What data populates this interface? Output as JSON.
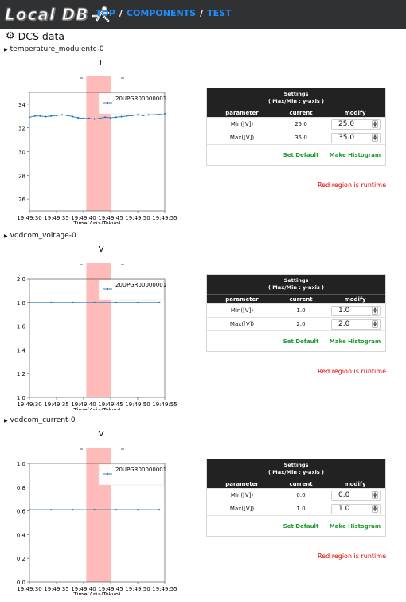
{
  "nav": {
    "logo_text": "Local DB",
    "links": [
      "TOP",
      "COMPONENTS",
      "TEST"
    ],
    "separator": "/"
  },
  "page_title": "DCS data",
  "sections": [
    {
      "name": "temperature_modulentc-0",
      "chart_title": "t",
      "settings_header_line1": "Settings",
      "settings_header_line2": "( Max/Min : y-axis )",
      "col_parameter": "parameter",
      "col_current": "current",
      "col_modify": "modify",
      "rows": [
        {
          "parameter": "Min([V])",
          "current": "25.0",
          "modify": "25.0"
        },
        {
          "parameter": "Max([V])",
          "current": "35.0",
          "modify": "35.0"
        }
      ],
      "set_default": "Set Default",
      "make_histogram": "Make Histogram",
      "runtime_note": "Red region is runtime"
    },
    {
      "name": "vddcom_voltage-0",
      "chart_title": "V",
      "settings_header_line1": "Settings",
      "settings_header_line2": "( Max/Min : y-axis )",
      "col_parameter": "parameter",
      "col_current": "current",
      "col_modify": "modify",
      "rows": [
        {
          "parameter": "Min([V])",
          "current": "1.0",
          "modify": "1.0"
        },
        {
          "parameter": "Max([V])",
          "current": "2.0",
          "modify": "2.0"
        }
      ],
      "set_default": "Set Default",
      "make_histogram": "Make Histogram",
      "runtime_note": "Red region is runtime"
    },
    {
      "name": "vddcom_current-0",
      "chart_title": "V",
      "settings_header_line1": "Settings",
      "settings_header_line2": "( Max/Min : y-axis )",
      "col_parameter": "parameter",
      "col_current": "current",
      "col_modify": "modify",
      "rows": [
        {
          "parameter": "Min([V])",
          "current": "0.0",
          "modify": "0.0"
        },
        {
          "parameter": "Max([V])",
          "current": "1.0",
          "modify": "1.0"
        }
      ],
      "set_default": "Set Default",
      "make_histogram": "Make Histogram",
      "runtime_note": "Red region is runtime"
    }
  ],
  "chart_data": [
    {
      "type": "line",
      "xlabel": "Time(Asia/Tokyo)",
      "x_ticks": [
        "19:49:30",
        "19:49:35",
        "19:49:40",
        "19:49:45",
        "19:49:50",
        "19:49:55"
      ],
      "y_ticks": [
        "26",
        "28",
        "30",
        "32",
        "34"
      ],
      "ylim": [
        25,
        35
      ],
      "runtime_region": [
        10.5,
        15.0
      ],
      "series": [
        {
          "name": "20UPGR00000001",
          "x": [
            0,
            1,
            2,
            3,
            4,
            5,
            6,
            7,
            8,
            9,
            10,
            11,
            12,
            13,
            14,
            15,
            16,
            17,
            18,
            19,
            20,
            21,
            22,
            23,
            24,
            25
          ],
          "y": [
            32.9,
            33.0,
            33.0,
            32.95,
            33.0,
            33.05,
            33.1,
            33.05,
            32.95,
            32.85,
            32.8,
            32.8,
            32.75,
            32.8,
            32.9,
            32.85,
            32.9,
            32.95,
            33.0,
            33.05,
            33.1,
            33.05,
            33.1,
            33.1,
            33.15,
            33.2
          ]
        }
      ],
      "colors": {
        "line": "#1f77b4",
        "runtime": "#ffb3b3"
      }
    },
    {
      "type": "line",
      "xlabel": "Time(Asia/Tokyo)",
      "x_ticks": [
        "19:49:30",
        "19:49:35",
        "19:49:40",
        "19:49:45",
        "19:49:50",
        "19:49:55"
      ],
      "y_ticks": [
        "1.0",
        "1.2",
        "1.4",
        "1.6",
        "1.8",
        "2.0"
      ],
      "ylim": [
        1.0,
        2.0
      ],
      "runtime_region": [
        10.5,
        15.0
      ],
      "series": [
        {
          "name": "20UPGR00000001",
          "x": [
            0,
            4,
            8,
            12,
            16,
            20,
            24
          ],
          "y": [
            1.8,
            1.8,
            1.8,
            1.8,
            1.8,
            1.8,
            1.8
          ]
        }
      ],
      "colors": {
        "line": "#1f77b4",
        "runtime": "#ffb3b3"
      }
    },
    {
      "type": "line",
      "xlabel": "Time(Asia/Tokyo)",
      "x_ticks": [
        "19:49:30",
        "19:49:35",
        "19:49:40",
        "19:49:45",
        "19:49:50",
        "19:49:55"
      ],
      "y_ticks": [
        "0.0",
        "0.2",
        "0.4",
        "0.6",
        "0.8",
        "1.0"
      ],
      "ylim": [
        0.0,
        1.0
      ],
      "runtime_region": [
        10.5,
        15.0
      ],
      "series": [
        {
          "name": "20UPGR00000001",
          "x": [
            0,
            4,
            8,
            12,
            16,
            20,
            24
          ],
          "y": [
            0.61,
            0.61,
            0.61,
            0.61,
            0.61,
            0.61,
            0.61
          ]
        }
      ],
      "colors": {
        "line": "#1f77b4",
        "runtime": "#ffb3b3"
      }
    }
  ]
}
